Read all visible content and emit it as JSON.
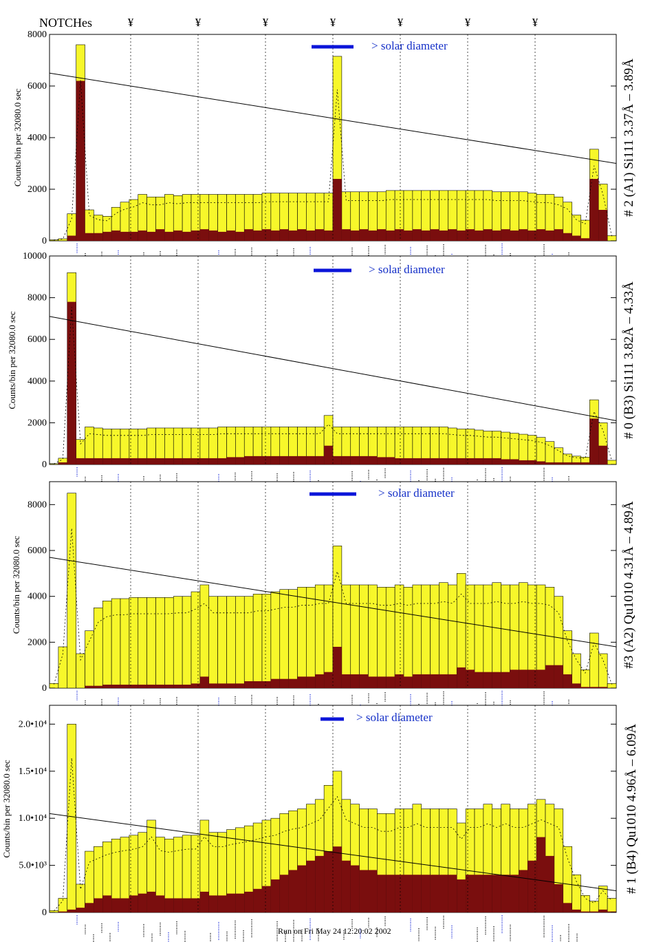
{
  "notches_label": "NOTCHes",
  "notch_symbol": "¥",
  "notch_positions": [
    190,
    288,
    386,
    484,
    582,
    680,
    778
  ],
  "footer": "Run on Fri May 24 12:20:02 2002",
  "colors": {
    "total_fill": "#f7f72a",
    "second_fill": "#7a0e0e",
    "solar_bar": "#0b15d9",
    "solar_text": "#1530c8",
    "line_label_black": "#000000",
    "line_label_blue": "#1a2ad8"
  },
  "chart_data": [
    {
      "type": "bar",
      "title": "# 2 (A1) Si111  3.37Å – 3.89Å",
      "ylabel": "Counts/bin per  32080.0 sec",
      "ylim": [
        0,
        8000
      ],
      "yticks": [
        0,
        2000,
        4000,
        6000,
        8000
      ],
      "ytick_labels": [
        "0",
        "2000",
        "4000",
        "6000",
        "8000"
      ],
      "annotation": "> solar diameter",
      "grid": true,
      "series": [
        {
          "values": [
            40,
            80,
            1050,
            7600,
            1200,
            1000,
            950,
            1300,
            1500,
            1600,
            1800,
            1700,
            1700,
            1800,
            1750,
            1800,
            1800,
            1800,
            1800,
            1800,
            1800,
            1800,
            1800,
            1800,
            1850,
            1850,
            1850,
            1850,
            1850,
            1850,
            1850,
            1850,
            7150,
            1900,
            1900,
            1900,
            1900,
            1900,
            1950,
            1950,
            1950,
            1950,
            1950,
            1950,
            1950,
            1950,
            1950,
            1950,
            1950,
            1950,
            1900,
            1900,
            1900,
            1900,
            1850,
            1800,
            1800,
            1700,
            1500,
            1000,
            800,
            3550,
            2200,
            200
          ]
        },
        {
          "values": [
            0,
            0,
            200,
            6200,
            300,
            300,
            350,
            400,
            350,
            350,
            400,
            350,
            450,
            350,
            400,
            350,
            400,
            450,
            400,
            350,
            400,
            350,
            450,
            400,
            450,
            400,
            450,
            400,
            450,
            400,
            450,
            400,
            2400,
            450,
            400,
            450,
            400,
            450,
            400,
            450,
            400,
            450,
            400,
            450,
            400,
            450,
            400,
            450,
            400,
            450,
            400,
            450,
            400,
            450,
            400,
            450,
            400,
            450,
            300,
            200,
            100,
            2400,
            1200,
            0
          ]
        },
        {
          "values": [
            6500,
            3000
          ]
        }
      ]
    },
    {
      "type": "bar",
      "title": "# 0 (B3) Si111  3.82Å – 4.33Å",
      "ylabel": "Counts/bin per  32080.0 sec",
      "ylim": [
        0,
        10000
      ],
      "yticks": [
        0,
        2000,
        4000,
        6000,
        8000,
        10000
      ],
      "ytick_labels": [
        "0",
        "2000",
        "4000",
        "6000",
        "8000",
        "10000"
      ],
      "annotation": "> solar diameter",
      "grid": false,
      "series": [
        {
          "values": [
            40,
            300,
            9200,
            1200,
            1800,
            1750,
            1700,
            1700,
            1700,
            1700,
            1700,
            1750,
            1750,
            1750,
            1750,
            1750,
            1750,
            1750,
            1750,
            1800,
            1800,
            1800,
            1800,
            1800,
            1800,
            1800,
            1800,
            1800,
            1800,
            1800,
            1800,
            2350,
            1800,
            1800,
            1800,
            1800,
            1800,
            1800,
            1800,
            1800,
            1800,
            1800,
            1800,
            1800,
            1800,
            1750,
            1700,
            1700,
            1650,
            1600,
            1600,
            1550,
            1500,
            1450,
            1400,
            1300,
            1100,
            800,
            500,
            400,
            350,
            3100,
            2000,
            200
          ]
        },
        {
          "values": [
            0,
            100,
            7800,
            300,
            300,
            300,
            300,
            300,
            300,
            300,
            300,
            300,
            300,
            300,
            300,
            300,
            300,
            300,
            300,
            300,
            350,
            350,
            400,
            400,
            400,
            400,
            400,
            400,
            400,
            400,
            400,
            900,
            400,
            400,
            400,
            400,
            400,
            350,
            350,
            300,
            300,
            300,
            300,
            300,
            300,
            300,
            300,
            300,
            300,
            300,
            300,
            250,
            250,
            200,
            200,
            150,
            100,
            100,
            100,
            100,
            100,
            2200,
            900,
            0
          ]
        },
        {
          "values": [
            7100,
            2100
          ]
        }
      ]
    },
    {
      "type": "bar",
      "title": "#3 (A2) Qu1010  4.31Å – 4.89Å",
      "ylabel": "Counts/bin per  32080.0 sec",
      "ylim": [
        0,
        9000
      ],
      "yticks": [
        0,
        2000,
        4000,
        6000,
        8000
      ],
      "ytick_labels": [
        "0",
        "2000",
        "4000",
        "6000",
        "8000"
      ],
      "annotation": "> solar diameter",
      "grid": false,
      "series": [
        {
          "values": [
            200,
            1800,
            8500,
            1500,
            2500,
            3500,
            3800,
            3900,
            3900,
            3950,
            3950,
            3950,
            3950,
            3950,
            4000,
            4000,
            4200,
            4500,
            4000,
            4000,
            4000,
            4000,
            4000,
            4100,
            4100,
            4200,
            4300,
            4300,
            4400,
            4400,
            4500,
            4500,
            6200,
            4500,
            4500,
            4500,
            4500,
            4400,
            4400,
            4500,
            4400,
            4500,
            4500,
            4500,
            4600,
            4500,
            5000,
            4500,
            4500,
            4500,
            4600,
            4500,
            4500,
            4600,
            4500,
            4500,
            4400,
            4000,
            2500,
            1500,
            800,
            2400,
            1500,
            200
          ]
        },
        {
          "values": [
            0,
            0,
            0,
            0,
            100,
            100,
            150,
            150,
            150,
            150,
            150,
            150,
            150,
            150,
            150,
            150,
            200,
            500,
            200,
            200,
            200,
            200,
            300,
            300,
            300,
            400,
            400,
            400,
            500,
            500,
            600,
            700,
            1800,
            600,
            600,
            600,
            500,
            500,
            500,
            600,
            500,
            600,
            600,
            600,
            600,
            600,
            900,
            800,
            700,
            700,
            700,
            700,
            800,
            800,
            800,
            800,
            1000,
            1000,
            600,
            200,
            50,
            50,
            50,
            0
          ]
        },
        {
          "values": [
            5700,
            1800
          ]
        }
      ]
    },
    {
      "type": "bar",
      "title": "# 1 (B4) Qu1010 4.96Å – 6.09Å",
      "ylabel": "Counts/bin per  32080.0 sec",
      "ylim": [
        0,
        22000
      ],
      "yticks": [
        0,
        5000,
        10000,
        15000,
        20000
      ],
      "ytick_labels": [
        "0",
        "5.0•10³",
        "1.0•10⁴",
        "1.5•10⁴",
        "2.0•10⁴"
      ],
      "annotation": "> solar diameter",
      "grid": false,
      "series": [
        {
          "values": [
            200,
            1500,
            20000,
            3000,
            6500,
            7000,
            7500,
            7800,
            8000,
            8200,
            8500,
            9800,
            8000,
            7800,
            8000,
            8200,
            8200,
            9800,
            8500,
            8500,
            8800,
            9000,
            9200,
            9500,
            9800,
            10000,
            10500,
            10800,
            11000,
            11500,
            12000,
            13500,
            15000,
            12000,
            11500,
            11000,
            11000,
            10500,
            10500,
            11000,
            11000,
            11500,
            11000,
            11000,
            11000,
            11000,
            9500,
            11000,
            11000,
            11500,
            11000,
            11500,
            11000,
            11000,
            11500,
            12000,
            11500,
            11000,
            7000,
            4000,
            1800,
            1200,
            2800,
            1500
          ]
        },
        {
          "values": [
            0,
            100,
            300,
            500,
            1000,
            1500,
            1800,
            1500,
            1500,
            1800,
            2000,
            2200,
            1800,
            1500,
            1500,
            1500,
            1500,
            2200,
            1800,
            1800,
            2000,
            2000,
            2200,
            2500,
            2800,
            3500,
            4000,
            4500,
            5000,
            5500,
            6000,
            6500,
            7000,
            5500,
            5000,
            4500,
            4500,
            4000,
            4000,
            4000,
            4000,
            4000,
            4000,
            4000,
            4000,
            4000,
            3500,
            4000,
            4000,
            4000,
            4000,
            4000,
            4000,
            4500,
            5500,
            8000,
            6000,
            3000,
            1000,
            300,
            100,
            100,
            300,
            100
          ]
        },
        {
          "values": [
            10500,
            2300
          ]
        }
      ]
    }
  ]
}
